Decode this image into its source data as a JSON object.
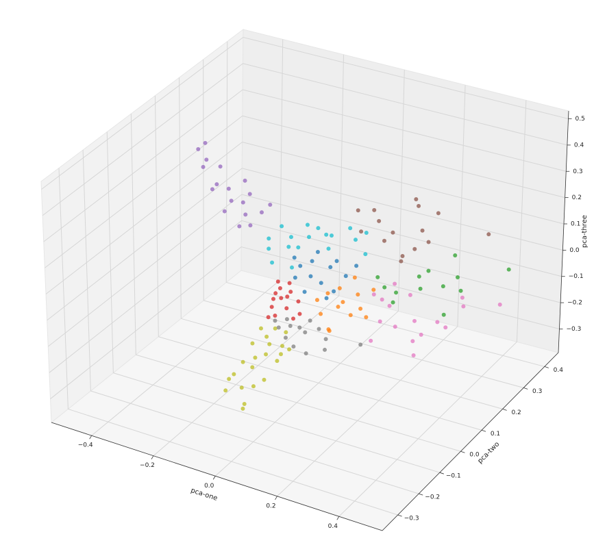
{
  "chart_data": {
    "type": "scatter3d",
    "xlabel": "pca-one",
    "ylabel": "pca-two",
    "zlabel": "pca-three",
    "xlim": [
      -0.53,
      0.54
    ],
    "ylim": [
      -0.374,
      0.466
    ],
    "zlim": [
      -0.39,
      0.53
    ],
    "xticks": [
      {
        "value": -0.4,
        "label": "−0.4"
      },
      {
        "value": -0.2,
        "label": "−0.2"
      },
      {
        "value": 0,
        "label": "0.0"
      },
      0.2,
      0.4
    ],
    "yticks": [
      {
        "value": -0.3,
        "label": "−0.3"
      },
      {
        "value": -0.2,
        "label": "−0.2"
      },
      {
        "value": -0.1,
        "label": "−0.1"
      },
      {
        "value": 0,
        "label": "0.0"
      },
      0.1,
      0.2,
      0.3,
      0.4
    ],
    "zticks": [
      {
        "value": -0.3,
        "label": "−0.3"
      },
      {
        "value": -0.2,
        "label": "−0.2"
      },
      {
        "value": -0.1,
        "label": "−0.1"
      },
      {
        "value": 0,
        "label": "0.0"
      },
      0.1,
      0.2,
      0.3,
      0.4,
      0.5
    ],
    "grid": true,
    "series": [
      {
        "color": "#9467bd",
        "x": [
          -0.334,
          -0.364,
          -0.323,
          -0.341,
          -0.301,
          -0.283,
          -0.312,
          -0.267,
          -0.244,
          -0.273,
          -0.221,
          -0.206,
          -0.183,
          -0.233,
          -0.154,
          -0.12,
          -0.215,
          -0.192
        ],
        "y": [
          0.05,
          0.06,
          0.04,
          0.05,
          0.07,
          0.03,
          0.05,
          0.06,
          0.04,
          0.05,
          0.06,
          0.05,
          0.04,
          0.06,
          0.05,
          0.04,
          0.06,
          0.05
        ],
        "z": [
          0.45,
          0.409,
          0.397,
          0.356,
          0.357,
          0.324,
          0.281,
          0.291,
          0.267,
          0.21,
          0.254,
          0.22,
          0.194,
          0.159,
          0.246,
          0.294,
          0.339,
          0.303
        ]
      },
      {
        "color": "#bcbd22",
        "x": [
          -0.079,
          -0.045,
          -0.022,
          -0.034,
          -0.09,
          -0.011,
          0.012,
          0.034,
          0.068,
          0.091,
          0.057,
          0.023,
          -0.011,
          -0.034,
          0.046,
          0.102,
          0.08,
          0,
          -0.056,
          0.113,
          0.034,
          0.068
        ],
        "y": [
          -0.2,
          -0.19,
          -0.21,
          -0.2,
          -0.2,
          -0.19,
          -0.21,
          -0.2,
          -0.19,
          -0.2,
          -0.21,
          -0.2,
          -0.19,
          -0.2,
          -0.21,
          -0.2,
          -0.19,
          -0.2,
          -0.21,
          -0.2,
          -0.19,
          -0.2
        ],
        "z": [
          -0.179,
          -0.207,
          -0.246,
          -0.276,
          -0.227,
          -0.117,
          -0.057,
          -0.141,
          -0.064,
          0.009,
          0.011,
          0.051,
          -0.026,
          -0.098,
          -0.032,
          0.065,
          -0.034,
          -0.178,
          -0.145,
          0.004,
          0.016,
          0.067
        ]
      },
      {
        "color": "#7f7f7f",
        "x": [
          -0.097,
          -0.052,
          -0.018,
          -0.074,
          0.005,
          -0.041,
          0.027,
          -0.007,
          -0.063,
          0.05,
          -0.109,
          -0.029,
          0.061,
          0.163
        ],
        "y": [
          0.05,
          0.04,
          0.06,
          0.05,
          0.05,
          0.04,
          0.06,
          0.05,
          0.04,
          0.06,
          0.05,
          0.05,
          0.04,
          0.06
        ],
        "z": [
          -0.174,
          -0.145,
          -0.173,
          -0.205,
          -0.113,
          -0.22,
          -0.145,
          -0.242,
          -0.123,
          -0.176,
          -0.152,
          -0.151,
          -0.198,
          -0.159
        ]
      },
      {
        "color": "#d62728",
        "x": [
          -0.108,
          -0.086,
          -0.097,
          -0.07,
          -0.12,
          -0.052,
          -0.079,
          -0.131,
          -0.102,
          -0.041,
          -0.063,
          -0.029,
          -0.093,
          -0.057,
          -0.115
        ],
        "y": [
          0.05,
          0.04,
          0.06,
          0.05,
          0.05,
          0.04,
          0.06,
          0.05,
          0.04,
          0.06,
          0.05,
          0.05,
          0.04,
          0.06,
          0.05
        ],
        "z": [
          -0.047,
          -0.013,
          -0.069,
          -0.047,
          -0.103,
          -0.015,
          -0.102,
          -0.146,
          -0.123,
          -0.063,
          0.007,
          -0.099,
          0.01,
          -0.134,
          -0.071
        ]
      },
      {
        "color": "#ff7f0e",
        "x": [
          0.061,
          0.106,
          0.151,
          0.095,
          0.039,
          0.174,
          0.129,
          0.208,
          0.072,
          0.14,
          0.027,
          0.186,
          0.117,
          0.061
        ],
        "y": [
          0.05,
          0.04,
          0.06,
          0.05,
          0.05,
          0.04,
          0.06,
          0.05,
          0.04,
          0.06,
          0.05,
          0.05,
          0.04,
          0.06
        ],
        "z": [
          0.01,
          0.052,
          0.028,
          -0.03,
          -0.076,
          -0.003,
          -0.058,
          0.073,
          -0.116,
          0.089,
          -0.027,
          -0.039,
          0.003,
          -0.141
        ]
      },
      {
        "color": "#1f77b4",
        "x": [
          -0.029,
          0.016,
          0.061,
          0.005,
          0.039,
          0.095,
          -0.052,
          0.118,
          -0.007,
          0.073,
          0.027,
          0.151,
          -0.041,
          0.05
        ],
        "y": [
          0.05,
          0.04,
          0.06,
          0.05,
          0.05,
          0.04,
          0.06,
          0.05,
          0.04,
          0.06,
          0.05,
          0.05,
          0.04,
          0.06
        ],
        "z": [
          0.084,
          0.125,
          0.102,
          0.056,
          0.042,
          0.152,
          0.024,
          0.095,
          0,
          0.014,
          0.156,
          0.145,
          0.119,
          -0.02
        ]
      },
      {
        "color": "#17becf",
        "x": [
          -0.131,
          -0.097,
          -0.052,
          -0.007,
          0.039,
          0.084,
          0.129,
          -0.074,
          -0.029,
          0.061,
          0.14,
          -0.12,
          0.186,
          -0.063,
          -0.131,
          0.005,
          0.174,
          0.027
        ],
        "y": [
          0.05,
          0.06,
          0.04,
          0.05,
          0.07,
          0.03,
          0.05,
          0.06,
          0.04,
          0.05,
          0.06,
          0.05,
          0.04,
          0.06,
          0.05,
          0.04,
          0.06,
          0.05
        ],
        "z": [
          0.154,
          0.205,
          0.194,
          0.248,
          0.211,
          0.253,
          0.281,
          0.134,
          0.162,
          0.18,
          0.233,
          0.066,
          0.209,
          0.059,
          0.115,
          0.213,
          0.271,
          0.247
        ]
      },
      {
        "color": "#e377c2",
        "x": [
          0.099,
          0.144,
          0.178,
          0.121,
          0.211,
          0.234,
          0.099,
          0.257,
          0.381,
          0.392,
          0.517,
          0.234,
          0.302,
          0.166,
          0.133,
          0.336,
          0.223
        ],
        "y": [
          0.21,
          0.22,
          0.2,
          0.21,
          0.22,
          0.21,
          0.2,
          0.21,
          0.22,
          0.21,
          0.2,
          0.21,
          0.22,
          0.21,
          0.2,
          0.21,
          0.22
        ],
        "z": [
          -0.103,
          -0.14,
          -0.193,
          -0.199,
          -0.077,
          -0.161,
          -0.272,
          -0.206,
          -0.033,
          -0.055,
          0,
          -0.292,
          -0.151,
          -0.041,
          -0.104,
          -0.153,
          -0.249
        ]
      },
      {
        "color": "#2ca02c",
        "x": [
          0.11,
          0.155,
          0.178,
          0.245,
          0.268,
          0.324,
          0.366,
          0.37,
          0.528,
          0.329,
          0.257,
          0.133,
          0.375
        ],
        "y": [
          0.21,
          0.22,
          0.2,
          0.21,
          0.22,
          0.21,
          0.2,
          0.21,
          0.22,
          0.21,
          0.2,
          0.21,
          0.22
        ],
        "z": [
          -0.034,
          -0.123,
          -0.063,
          0.012,
          0.033,
          0,
          0.139,
          0.049,
          0.121,
          -0.107,
          -0.023,
          -0.065,
          -0.009
        ]
      },
      {
        "color": "#8c564b",
        "x": [
          0.042,
          0.087,
          0.117,
          0.228,
          0.23,
          0.301,
          0.258,
          0.156,
          0.122,
          0.228,
          0.279,
          0.465,
          0.178,
          0.053,
          0.196
        ],
        "y": [
          0.21,
          0.22,
          0.2,
          0.21,
          0.22,
          0.21,
          0.2,
          0.21,
          0.22,
          0.21,
          0.2,
          0.21,
          0.22,
          0.21,
          0.2
        ],
        "z": [
          0.199,
          0.207,
          0.19,
          0.301,
          0.268,
          0.271,
          0.199,
          0.151,
          0.101,
          0.111,
          0.162,
          0.243,
          0.041,
          0.122,
          0.082
        ]
      }
    ]
  }
}
